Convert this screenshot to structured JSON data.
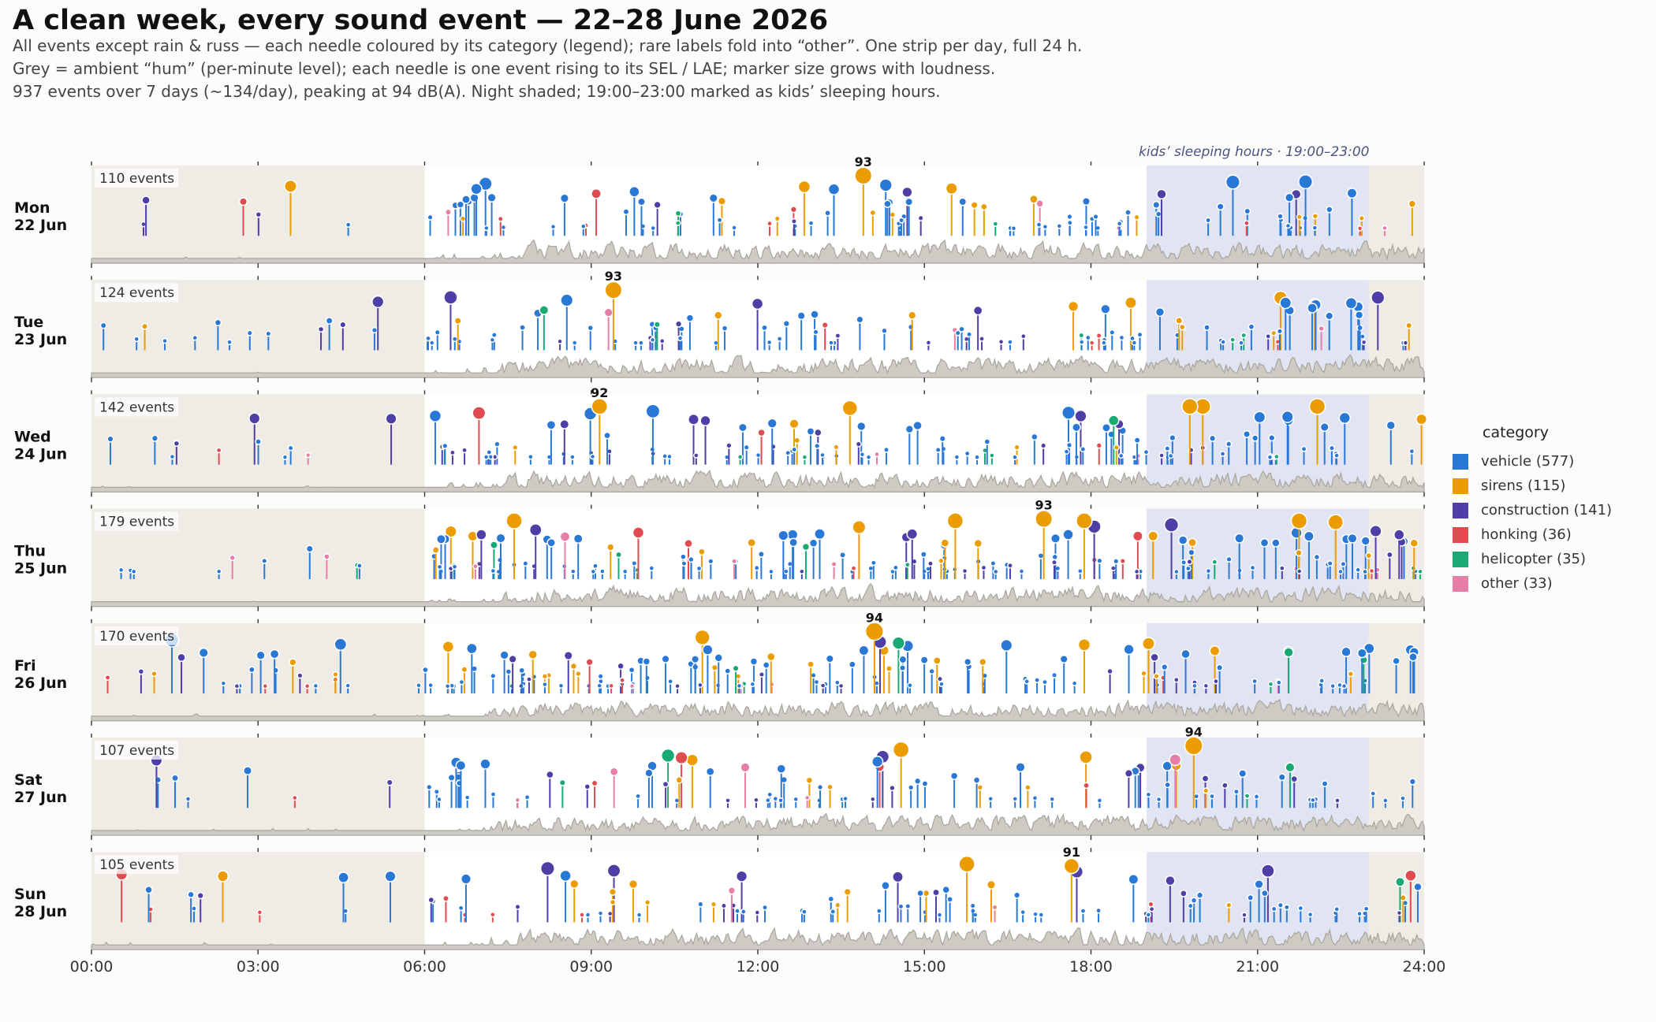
{
  "header": {
    "title": "A clean week, every sound event — 22–28 June 2026",
    "subtitle_lines": [
      "All events except rain & russ — each needle coloured by its category (legend); rare labels fold into “other”.  One strip per day, full 24 h.",
      "Grey = ambient “hum” (per-minute level); each needle is one event rising to its SEL / LAE; marker size grows with loudness.",
      "937 events over 7 days (~134/day), peaking at 94 dB(A). Night shaded; 19:00–23:00 marked as kids’ sleeping hours."
    ]
  },
  "chart_data": {
    "type": "scatter",
    "subtype": "needle strip plot with ambient area",
    "x_unit": "hour of day",
    "xlim": [
      0,
      24
    ],
    "x_ticks": [
      "00:00",
      "03:00",
      "06:00",
      "09:00",
      "12:00",
      "15:00",
      "18:00",
      "21:00",
      "24:00"
    ],
    "night_shading_hours": [
      [
        0,
        6
      ],
      [
        23,
        24
      ]
    ],
    "kids_band": {
      "hours": [
        19,
        23
      ],
      "label": "kids’ sleeping hours · 19:00–23:00"
    },
    "total_events": 937,
    "peak_level_dba": 94,
    "legend": {
      "title": "category",
      "placement": "right",
      "entries": [
        {
          "key": "vehicle",
          "label": "vehicle  (577)",
          "count": 577,
          "color": "#2a78d6"
        },
        {
          "key": "sirens",
          "label": "sirens  (115)",
          "count": 115,
          "color": "#eb9c00"
        },
        {
          "key": "construction",
          "label": "construction  (141)",
          "count": 141,
          "color": "#4e3fa6"
        },
        {
          "key": "honking",
          "label": "honking  (36)",
          "count": 36,
          "color": "#e04b50"
        },
        {
          "key": "helicopter",
          "label": "helicopter  (35)",
          "count": 35,
          "color": "#19aa74"
        },
        {
          "key": "other",
          "label": "other  (33)",
          "count": 33,
          "color": "#e77ea8"
        }
      ]
    },
    "days": [
      {
        "weekday": "Mon",
        "date": "22 Jun",
        "event_count_label": "110 events",
        "n_events": 110,
        "peak": {
          "hour": 13.9,
          "db": 93,
          "label": "93"
        }
      },
      {
        "weekday": "Tue",
        "date": "23 Jun",
        "event_count_label": "124 events",
        "n_events": 124,
        "peak": {
          "hour": 9.4,
          "db": 93,
          "label": "93"
        }
      },
      {
        "weekday": "Wed",
        "date": "24 Jun",
        "event_count_label": "142 events",
        "n_events": 142,
        "peak": {
          "hour": 9.15,
          "db": 92,
          "label": "92"
        }
      },
      {
        "weekday": "Thu",
        "date": "25 Jun",
        "event_count_label": "179 events",
        "n_events": 179,
        "peak": {
          "hour": 17.15,
          "db": 93,
          "label": "93"
        }
      },
      {
        "weekday": "Fri",
        "date": "26 Jun",
        "event_count_label": "170 events",
        "n_events": 170,
        "peak": {
          "hour": 14.1,
          "db": 94,
          "label": "94"
        }
      },
      {
        "weekday": "Sat",
        "date": "27 Jun",
        "event_count_label": "107 events",
        "n_events": 107,
        "peak": {
          "hour": 19.85,
          "db": 94,
          "label": "94"
        }
      },
      {
        "weekday": "Sun",
        "date": "28 Jun",
        "event_count_label": "105 events",
        "n_events": 105,
        "peak": {
          "hour": 17.65,
          "db": 91,
          "label": "91"
        }
      }
    ]
  }
}
